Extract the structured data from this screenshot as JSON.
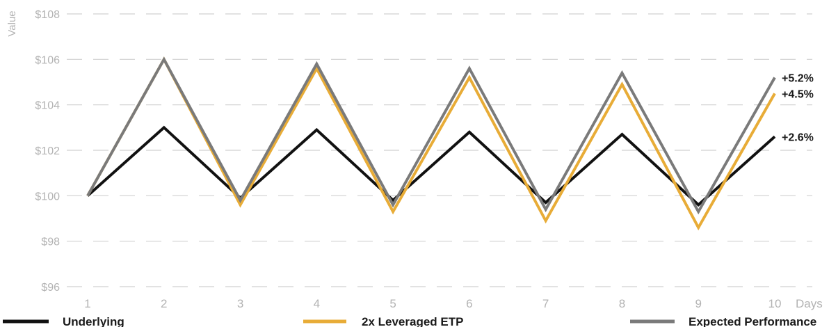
{
  "chart_data": {
    "type": "line",
    "title": "",
    "xlabel": "Days",
    "ylabel": "Value",
    "x": [
      "1",
      "2",
      "3",
      "4",
      "5",
      "6",
      "7",
      "8",
      "9",
      "10"
    ],
    "y_ticks": [
      "$96",
      "$98",
      "$100",
      "$102",
      "$104",
      "$106",
      "$108"
    ],
    "ylim": [
      96,
      108
    ],
    "grid": true,
    "legend_position": "bottom",
    "series": [
      {
        "name": "Underlying",
        "color": "#111111",
        "values": [
          100,
          103.0,
          99.9,
          102.9,
          99.8,
          102.8,
          99.7,
          102.7,
          99.6,
          102.6
        ],
        "end_label": "+2.6%"
      },
      {
        "name": "2x Leveraged ETP",
        "color": "#e8ac37",
        "values": [
          100,
          106.0,
          99.6,
          105.6,
          99.3,
          105.2,
          98.9,
          104.9,
          98.6,
          104.5
        ],
        "end_label": "+4.5%"
      },
      {
        "name": "Expected Performance",
        "color": "#7a7a7a",
        "values": [
          100,
          106.0,
          99.8,
          105.8,
          99.6,
          105.6,
          99.4,
          105.4,
          99.3,
          105.2
        ],
        "end_label": "+5.2%"
      }
    ]
  }
}
